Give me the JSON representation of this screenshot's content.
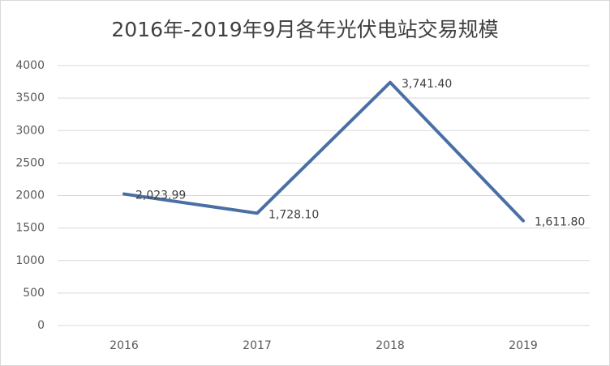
{
  "chart_data": {
    "type": "line",
    "title": "2016年-2019年9月各年光伏电站交易规模",
    "categories": [
      "2016",
      "2017",
      "2018",
      "2019"
    ],
    "values": [
      2023.99,
      1728.1,
      3741.4,
      1611.8
    ],
    "value_labels": [
      "2,023.99",
      "1,728.10",
      "3,741.40",
      "1,611.80"
    ],
    "color": "#4a6fa5",
    "ylim": [
      0,
      4000
    ],
    "yticks": [
      0,
      500,
      1000,
      1500,
      2000,
      2500,
      3000,
      3500,
      4000
    ],
    "grid": true
  }
}
